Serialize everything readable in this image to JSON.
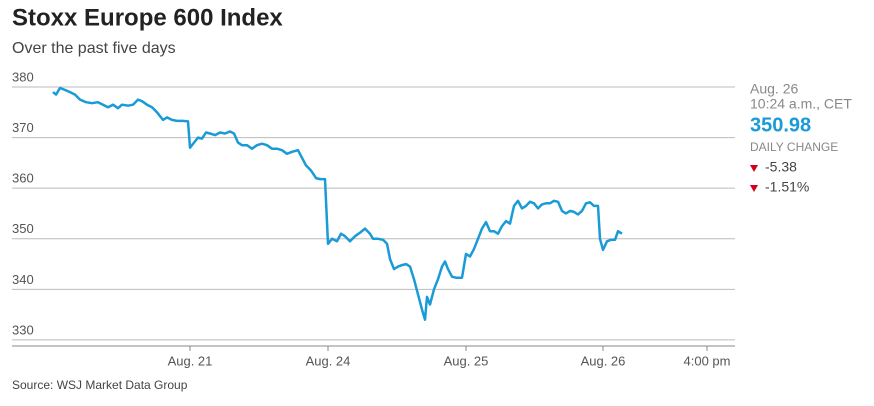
{
  "chart_data": {
    "type": "line",
    "title": "Stoxx Europe 600 Index",
    "subtitle": "Over the past five days",
    "source": "Source: WSJ Market Data Group",
    "side_panel": {
      "date": "Aug. 26",
      "time": "10:24 a.m., CET",
      "last": "350.98",
      "change_label": "DAILY CHANGE",
      "change": "-5.38",
      "change_pct": "-1.51%"
    },
    "color": "#1a9bd7",
    "grid": true,
    "xlim": [
      -41,
      682
    ],
    "ylim": [
      328.8,
      380
    ],
    "yticks": [
      330,
      340,
      350,
      360,
      370,
      380
    ],
    "xticks": [
      {
        "value": 137,
        "label": "Aug. 21"
      },
      {
        "value": 275,
        "label": "Aug. 24"
      },
      {
        "value": 413,
        "label": "Aug. 25"
      },
      {
        "value": 550,
        "label": "Aug. 26"
      },
      {
        "value": 654,
        "label": "4:00 pm"
      }
    ],
    "x": [
      0,
      3,
      7,
      11,
      17,
      22,
      27,
      33,
      39,
      45,
      50,
      55,
      60,
      65,
      69,
      75,
      80,
      85,
      89,
      94,
      99,
      104,
      108,
      110,
      114,
      119,
      124,
      130,
      135,
      137,
      141,
      145,
      149,
      153,
      157,
      162,
      167,
      172,
      177,
      181,
      185,
      189,
      194,
      199,
      204,
      209,
      214,
      219,
      224,
      229,
      234,
      239,
      245,
      249,
      253,
      258,
      263,
      267,
      272,
      275,
      279,
      284,
      288,
      292,
      297,
      302,
      307,
      312,
      317,
      320,
      325,
      330,
      334,
      337,
      341,
      345,
      349,
      353,
      357,
      361,
      365,
      369,
      372,
      374,
      377,
      381,
      385,
      389,
      392,
      395,
      399,
      403,
      409,
      413,
      417,
      421,
      425,
      429,
      433,
      437,
      441,
      445,
      449,
      453,
      457,
      461,
      465,
      469,
      473,
      477,
      481,
      485,
      489,
      493,
      497,
      501,
      505,
      509,
      513,
      517,
      521,
      525,
      529,
      533,
      537,
      541,
      545,
      547,
      550,
      554,
      558,
      562,
      565,
      569
    ],
    "values": [
      379,
      378.5,
      379.8,
      379.5,
      379,
      378.5,
      377.5,
      377,
      376.8,
      377,
      376.5,
      376,
      376.5,
      375.8,
      376.5,
      376.3,
      376.5,
      377.5,
      377.2,
      376.5,
      376,
      375,
      374,
      373.5,
      374,
      373.5,
      373.3,
      373.3,
      373.2,
      368,
      369,
      370,
      369.8,
      371,
      370.8,
      370.5,
      371,
      370.8,
      371.2,
      370.8,
      369,
      368.5,
      368.5,
      367.8,
      368.5,
      368.8,
      368.5,
      367.8,
      367.8,
      367.5,
      366.8,
      367.2,
      367.5,
      366,
      364.5,
      363.5,
      362,
      361.8,
      361.8,
      349,
      350,
      349.5,
      351,
      350.5,
      349.5,
      350.5,
      351.2,
      352,
      351,
      350,
      350,
      349.8,
      349,
      346,
      344,
      344.5,
      344.8,
      345,
      344.5,
      342,
      339,
      336,
      334,
      338.5,
      337,
      340,
      342,
      344.5,
      345.5,
      344,
      342.5,
      342.3,
      342.3,
      347,
      346.5,
      348,
      350,
      352,
      353.3,
      351.5,
      351.5,
      351,
      352.5,
      353.5,
      353,
      356.5,
      357.5,
      356,
      356.5,
      357.3,
      357,
      356,
      356.8,
      357,
      357,
      357.5,
      357.3,
      355.5,
      355,
      355.5,
      355.3,
      354.8,
      355.5,
      357,
      357.2,
      356.5,
      356.5,
      350,
      347.8,
      349.5,
      349.8,
      349.8,
      351.5,
      351
    ]
  }
}
